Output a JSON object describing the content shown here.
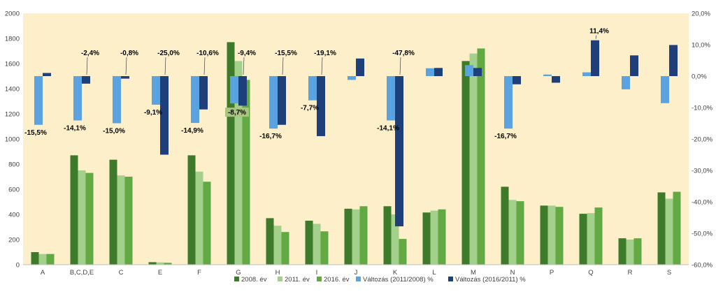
{
  "chart_data": {
    "type": "bar",
    "categories": [
      "A",
      "B,C,D,E",
      "C",
      "E",
      "F",
      "G",
      "H",
      "I",
      "J",
      "K",
      "L",
      "M",
      "N",
      "P",
      "Q",
      "R",
      "S"
    ],
    "series": [
      {
        "name": "2008. év",
        "axis": "left",
        "kind": "bar",
        "values": [
          100,
          870,
          835,
          20,
          870,
          1770,
          370,
          350,
          445,
          465,
          415,
          1620,
          620,
          470,
          405,
          210,
          575
        ]
      },
      {
        "name": "2011. év",
        "axis": "left",
        "kind": "bar",
        "values": [
          85,
          750,
          710,
          18,
          740,
          1620,
          310,
          325,
          440,
          400,
          430,
          1680,
          515,
          470,
          410,
          200,
          525
        ]
      },
      {
        "name": "2016. év",
        "axis": "left",
        "kind": "bar",
        "values": [
          85,
          730,
          700,
          15,
          660,
          1470,
          260,
          265,
          465,
          205,
          440,
          1720,
          505,
          460,
          455,
          210,
          580
        ]
      },
      {
        "name": "Változás (2011/2008) %",
        "axis": "right",
        "kind": "change",
        "values": [
          -15.5,
          -14.1,
          -15.0,
          -9.1,
          -14.9,
          -8.7,
          -16.7,
          -7.7,
          -1.2,
          -14.1,
          2.5,
          3.5,
          -16.7,
          0.5,
          1.2,
          -4.2,
          -8.6
        ]
      },
      {
        "name": "Változás (2016/2011) %",
        "axis": "right",
        "kind": "change",
        "values": [
          1.0,
          -2.4,
          -0.8,
          -25.0,
          -10.6,
          -9.4,
          -15.5,
          -19.1,
          5.6,
          -47.8,
          2.6,
          2.6,
          -2.6,
          -2.1,
          11.4,
          6.6,
          9.9
        ]
      }
    ],
    "data_labels": [
      {
        "series": 3,
        "index": 0,
        "text": "-15,5%"
      },
      {
        "series": 3,
        "index": 1,
        "text": "-14,1%"
      },
      {
        "series": 4,
        "index": 1,
        "text": "-2,4%"
      },
      {
        "series": 3,
        "index": 2,
        "text": "-15,0%"
      },
      {
        "series": 4,
        "index": 2,
        "text": "-0,8%"
      },
      {
        "series": 3,
        "index": 3,
        "text": "-9,1%"
      },
      {
        "series": 4,
        "index": 3,
        "text": "-25,0%"
      },
      {
        "series": 3,
        "index": 4,
        "text": "-14,9%"
      },
      {
        "series": 4,
        "index": 4,
        "text": "-10,6%"
      },
      {
        "series": 3,
        "index": 5,
        "text": "-8,7%"
      },
      {
        "series": 4,
        "index": 5,
        "text": "-9,4%"
      },
      {
        "series": 3,
        "index": 6,
        "text": "-16,7%"
      },
      {
        "series": 4,
        "index": 6,
        "text": "-15,5%"
      },
      {
        "series": 3,
        "index": 7,
        "text": "-7,7%"
      },
      {
        "series": 4,
        "index": 7,
        "text": "-19,1%"
      },
      {
        "series": 3,
        "index": 9,
        "text": "-14,1%"
      },
      {
        "series": 4,
        "index": 9,
        "text": "-47,8%"
      },
      {
        "series": 3,
        "index": 12,
        "text": "-16,7%"
      },
      {
        "series": 4,
        "index": 14,
        "text": "11,4%"
      }
    ],
    "left_axis": {
      "min": 0,
      "max": 2000,
      "step": 200,
      "ticks": [
        "0",
        "200",
        "400",
        "600",
        "800",
        "1000",
        "1200",
        "1400",
        "1600",
        "1800",
        "2000"
      ]
    },
    "right_axis": {
      "min": -60,
      "max": 20,
      "step": 10,
      "ticks": [
        "-60,0%",
        "-50,0%",
        "-40,0%",
        "-30,0%",
        "-20,0%",
        "-10,0%",
        "0,0%",
        "10,0%",
        "20,0%"
      ]
    },
    "grid": false,
    "legend_position": "bottom",
    "colors": {
      "plot_background": "#fcefc9",
      "2008": "#3d7a2a",
      "2011": "#a3d18c",
      "2016": "#62a843",
      "change_2011_2008": "#5ba3e0",
      "change_2016_2011": "#1e3f7a",
      "label_highlight": "#a9c47f"
    }
  }
}
